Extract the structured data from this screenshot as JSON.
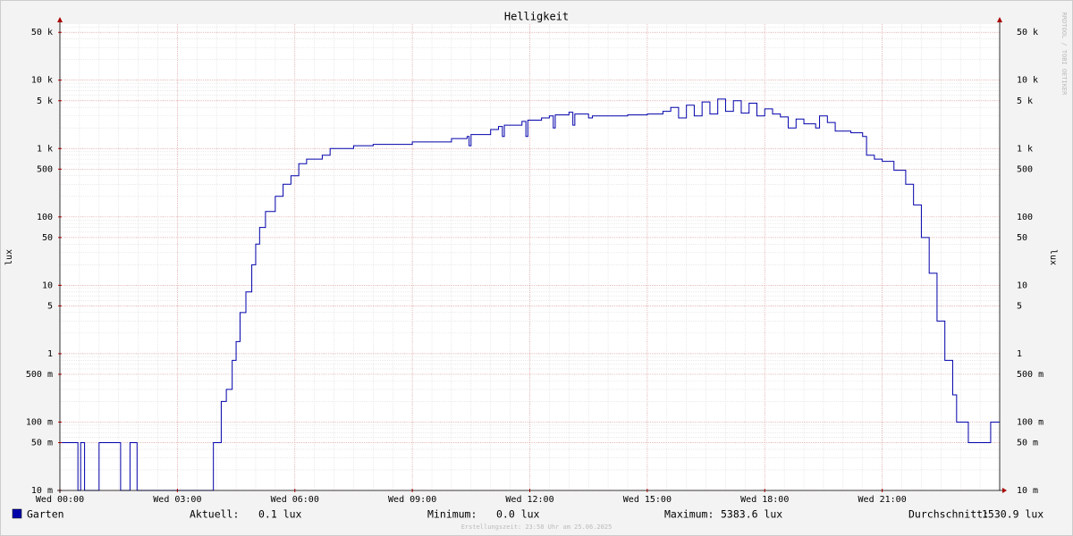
{
  "chart_data": {
    "type": "line",
    "title": "Helligkeit",
    "y_label": "lux",
    "side_text": "RRDTOOL / TOBI OETIKER",
    "log_scale": true,
    "grid": true,
    "xlim": [
      0,
      24
    ],
    "xticks": [
      {
        "value": 0,
        "label": "Wed 00:00"
      },
      {
        "value": 3,
        "label": "Wed 03:00"
      },
      {
        "value": 6,
        "label": "Wed 06:00"
      },
      {
        "value": 9,
        "label": "Wed 09:00"
      },
      {
        "value": 12,
        "label": "Wed 12:00"
      },
      {
        "value": 15,
        "label": "Wed 15:00"
      },
      {
        "value": 18,
        "label": "Wed 18:00"
      },
      {
        "value": 21,
        "label": "Wed 21:00"
      }
    ],
    "ylim": [
      0.01,
      66000
    ],
    "yticks": [
      {
        "value": 0.01,
        "label": "10 m"
      },
      {
        "value": 0.05,
        "label": "50 m"
      },
      {
        "value": 0.1,
        "label": "100 m"
      },
      {
        "value": 0.5,
        "label": "500 m"
      },
      1,
      5,
      10,
      50,
      100,
      500,
      {
        "value": 1000,
        "label": "1 k"
      },
      {
        "value": 5000,
        "label": "5 k"
      },
      {
        "value": 10000,
        "label": "10 k"
      },
      {
        "value": 50000,
        "label": "50 k"
      }
    ],
    "series": [
      {
        "name": "Garten",
        "color": "#0000aa",
        "x": [
          0,
          0.45,
          0.46,
          0.52,
          0.53,
          0.62,
          0.63,
          0.98,
          1.0,
          1.53,
          1.55,
          1.78,
          1.79,
          1.95,
          1.97,
          3.9,
          3.92,
          4.08,
          4.12,
          4.25,
          4.4,
          4.5,
          4.6,
          4.75,
          4.9,
          5.0,
          5.1,
          5.25,
          5.5,
          5.7,
          5.9,
          6.1,
          6.3,
          6.7,
          6.9,
          7.2,
          7.5,
          8.0,
          9.0,
          10.0,
          10.4,
          10.45,
          10.5,
          11.0,
          11.2,
          11.3,
          11.35,
          11.8,
          11.9,
          11.95,
          12.3,
          12.5,
          12.6,
          12.65,
          13.0,
          13.1,
          13.15,
          13.5,
          13.6,
          14.0,
          14.5,
          15.0,
          15.4,
          15.6,
          15.8,
          16.0,
          16.2,
          16.4,
          16.6,
          16.8,
          17.0,
          17.2,
          17.4,
          17.6,
          17.8,
          18.0,
          18.2,
          18.4,
          18.6,
          18.8,
          19.0,
          19.3,
          19.4,
          19.6,
          19.8,
          20.2,
          20.5,
          20.6,
          20.8,
          21.0,
          21.3,
          21.6,
          21.8,
          22.0,
          22.2,
          22.4,
          22.6,
          22.8,
          22.9,
          23.2,
          23.75,
          23.77,
          24
        ],
        "values": [
          0.05,
          0.05,
          0,
          0,
          0.05,
          0.05,
          0,
          0,
          0.05,
          0.05,
          0,
          0,
          0.05,
          0.05,
          0,
          0,
          0.05,
          0.05,
          0.2,
          0.3,
          0.8,
          1.5,
          4,
          8,
          20,
          40,
          70,
          120,
          200,
          300,
          400,
          600,
          700,
          800,
          1000,
          1000,
          1100,
          1150,
          1250,
          1400,
          1500,
          1100,
          1600,
          1900,
          2100,
          1500,
          2200,
          2500,
          1500,
          2600,
          2800,
          3000,
          2000,
          3100,
          3400,
          2200,
          3200,
          2800,
          3000,
          3000,
          3100,
          3200,
          3500,
          4000,
          2800,
          4300,
          3000,
          4800,
          3200,
          5300,
          3500,
          5000,
          3300,
          4600,
          3000,
          3800,
          3200,
          2900,
          2000,
          2700,
          2300,
          2000,
          3000,
          2400,
          1800,
          1700,
          1500,
          800,
          700,
          650,
          480,
          300,
          150,
          50,
          15,
          3,
          0.8,
          0.25,
          0.1,
          0.05,
          0.05,
          0.1,
          0.1
        ]
      }
    ],
    "stats": [
      {
        "label": "Aktuell:",
        "value": "0.1 lux"
      },
      {
        "label": "Minimum:",
        "value": "0.0 lux"
      },
      {
        "label": "Maximum:",
        "value": "5383.6 lux"
      },
      {
        "label": "Durchschnitt:",
        "value": "1530.9 lux"
      }
    ],
    "footer": "Erstellungszeit: 23:58 Uhr am 25.06.2025"
  }
}
